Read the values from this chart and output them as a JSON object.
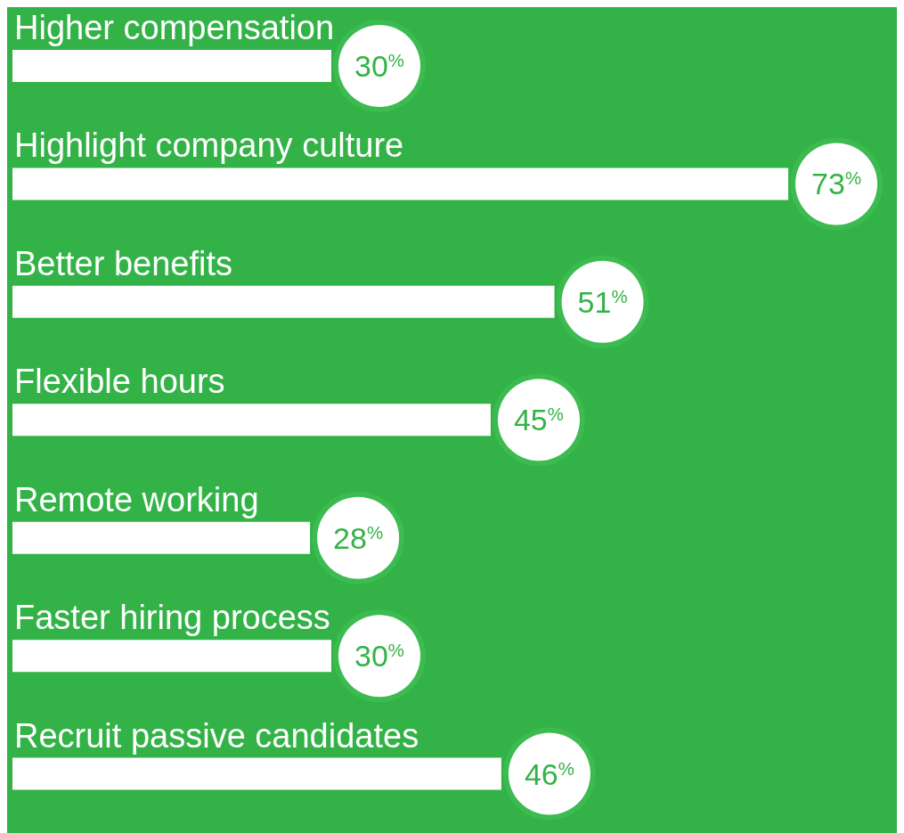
{
  "chart_data": {
    "type": "bar",
    "orientation": "horizontal",
    "categories": [
      "Higher compensation",
      "Highlight company culture",
      "Better benefits",
      "Flexible hours",
      "Remote working",
      "Faster hiring process",
      "Recruit passive candidates"
    ],
    "values": [
      30,
      73,
      51,
      45,
      28,
      30,
      46
    ],
    "value_labels": [
      "30$^{%}$",
      "73$^{%}$",
      "51$^{%}$",
      "45$^{%}$",
      "28$^{%}$",
      "30$^{%}$",
      "46$^{%}$"
    ],
    "color": "#ffffff",
    "grid": false,
    "legend": false
  }
}
